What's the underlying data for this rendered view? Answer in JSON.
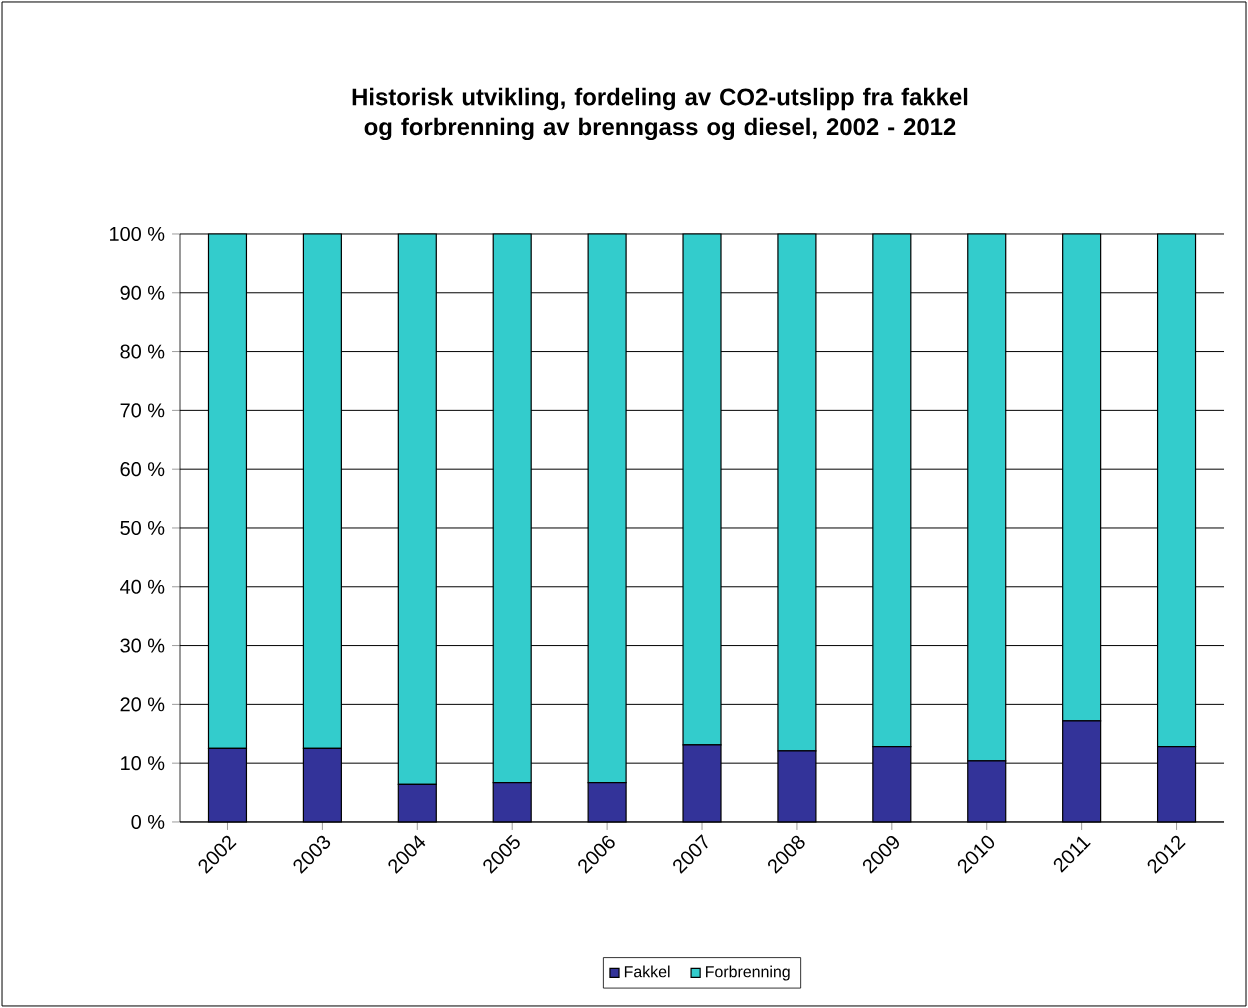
{
  "chart_data": {
    "type": "bar",
    "stacked": true,
    "title": "Historisk utvikling, fordeling av CO2-utslipp fra fakkel og forbrenning av brenngass og diesel, 2002 - 2012",
    "categories": [
      "2002",
      "2003",
      "2004",
      "2005",
      "2006",
      "2007",
      "2008",
      "2009",
      "2010",
      "2011",
      "2012"
    ],
    "series": [
      {
        "name": "Fakkel",
        "color": "#333399",
        "values": [
          12.5,
          12.5,
          6.4,
          6.7,
          6.7,
          13.1,
          12.1,
          12.8,
          10.4,
          17.2,
          12.8
        ]
      },
      {
        "name": "Forbrenning",
        "color": "#33cccc",
        "values": [
          87.5,
          87.5,
          93.6,
          93.3,
          93.3,
          86.9,
          87.9,
          87.2,
          89.6,
          82.8,
          87.2
        ]
      }
    ],
    "ylim": [
      0,
      100
    ],
    "yticks": [
      {
        "value": 0,
        "label": "0 %"
      },
      {
        "value": 10,
        "label": "10 %"
      },
      {
        "value": 20,
        "label": "20 %"
      },
      {
        "value": 30,
        "label": "30 %"
      },
      {
        "value": 40,
        "label": "40 %"
      },
      {
        "value": 50,
        "label": "50 %"
      },
      {
        "value": 60,
        "label": "60 %"
      },
      {
        "value": 70,
        "label": "70 %"
      },
      {
        "value": 80,
        "label": "80 %"
      },
      {
        "value": 90,
        "label": "90 %"
      },
      {
        "value": 100,
        "label": "100 %"
      }
    ],
    "grid": "y",
    "legend": "bottom"
  }
}
